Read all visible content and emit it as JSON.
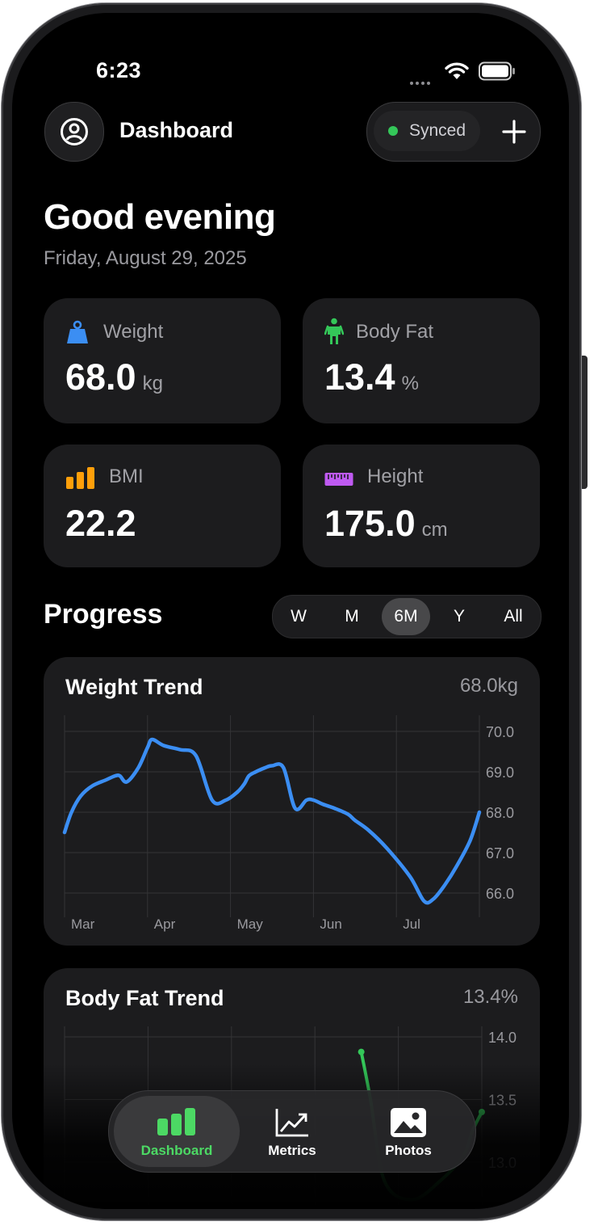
{
  "status": {
    "time": "6:23"
  },
  "header": {
    "title": "Dashboard",
    "sync_label": "Synced"
  },
  "greeting": {
    "title": "Good evening",
    "date": "Friday, August 29, 2025"
  },
  "metrics": [
    {
      "label": "Weight",
      "value": "68.0",
      "unit": "kg",
      "icon": "weight-icon",
      "color": "#3b8ef3"
    },
    {
      "label": "Body Fat",
      "value": "13.4",
      "unit": "%",
      "icon": "person-icon",
      "color": "#34c759"
    },
    {
      "label": "BMI",
      "value": "22.2",
      "unit": "",
      "icon": "bar-chart-icon",
      "color": "#ff9f0a"
    },
    {
      "label": "Height",
      "value": "175.0",
      "unit": "cm",
      "icon": "ruler-icon",
      "color": "#bf5af2"
    }
  ],
  "progress": {
    "title": "Progress",
    "ranges": [
      "W",
      "M",
      "6M",
      "Y",
      "All"
    ],
    "selected_range": "6M"
  },
  "charts": {
    "weight": {
      "title": "Weight Trend",
      "current": "68.0kg"
    },
    "bodyfat": {
      "title": "Body Fat Trend",
      "current": "13.4%"
    }
  },
  "chart_data": [
    {
      "type": "line",
      "title": "Weight Trend",
      "xlabel": "",
      "ylabel": "",
      "x_tick_labels": [
        "Mar",
        "Apr",
        "May",
        "Jun",
        "Jul"
      ],
      "y_ticks": [
        "66.0",
        "67.0",
        "68.0",
        "69.0",
        "70.0"
      ],
      "ylim": [
        65.6,
        70.4
      ],
      "color": "#3b8ef3",
      "grid": true,
      "series": [
        {
          "x": [
            0,
            3,
            7,
            12,
            18,
            22,
            24,
            27,
            32,
            36,
            38,
            43,
            50,
            57,
            64,
            70,
            75,
            78,
            80,
            83,
            87,
            90,
            95,
            100,
            105,
            108,
            112,
            117,
            123,
            126,
            132,
            140,
            150,
            156,
            160,
            165,
            170,
            176,
            180
          ],
          "y": [
            67.5,
            68.0,
            68.4,
            68.65,
            68.8,
            68.9,
            68.9,
            68.75,
            69.1,
            69.6,
            69.8,
            69.65,
            69.55,
            69.4,
            68.3,
            68.3,
            68.5,
            68.7,
            68.9,
            69.0,
            69.1,
            69.15,
            69.1,
            68.1,
            68.3,
            68.3,
            68.2,
            68.1,
            67.95,
            67.8,
            67.55,
            67.1,
            66.4,
            65.8,
            65.85,
            66.2,
            66.65,
            67.3,
            68.0
          ]
        }
      ]
    },
    {
      "type": "line",
      "title": "Body Fat Trend",
      "xlabel": "",
      "ylabel": "",
      "y_ticks": [
        "13.0",
        "13.5",
        "14.0"
      ],
      "ylim": [
        12.85,
        14.05
      ],
      "color": "#34c759",
      "grid": true,
      "series": [
        {
          "x": [
            128,
            132,
            138,
            150,
            162,
            172,
            176,
            180
          ],
          "y": [
            13.88,
            13.5,
            12.85,
            12.7,
            12.85,
            13.05,
            13.25,
            13.4
          ]
        }
      ]
    }
  ],
  "tabs": [
    {
      "label": "Dashboard",
      "icon": "dashboard-bars-icon",
      "active": true
    },
    {
      "label": "Metrics",
      "icon": "trend-chart-icon",
      "active": false
    },
    {
      "label": "Photos",
      "icon": "photo-icon",
      "active": false
    }
  ],
  "colors": {
    "accent": "#3b8ef3",
    "green": "#34c759",
    "card": "#1c1c1e"
  }
}
